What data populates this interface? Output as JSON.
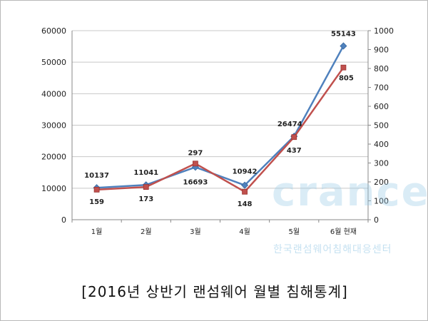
{
  "caption": "[2016년 상반기 랜섬웨어 월별 침해통계]",
  "watermark": {
    "logo_text": "crancert",
    "subtitle": "한국랜섬웨어침해대응센터"
  },
  "chart_data": {
    "type": "line",
    "categories": [
      "1월",
      "2월",
      "3월",
      "4월",
      "5월",
      "6월 현재"
    ],
    "series": [
      {
        "axis": "left",
        "color": "#4F81BD",
        "marker": "diamond",
        "values": [
          10137,
          11041,
          16693,
          10942,
          26474,
          55143
        ]
      },
      {
        "axis": "right",
        "color": "#C0504D",
        "marker": "square",
        "values": [
          159,
          173,
          297,
          148,
          437,
          805
        ]
      }
    ],
    "y_left": {
      "min": 0,
      "max": 60000,
      "ticks": [
        "0",
        "10000",
        "20000",
        "30000",
        "40000",
        "50000",
        "60000"
      ]
    },
    "y_right": {
      "min": 0,
      "max": 1000,
      "ticks": [
        "0",
        "100",
        "200",
        "300",
        "400",
        "500",
        "600",
        "700",
        "800",
        "900",
        "1000"
      ]
    },
    "labels_left": [
      "10137",
      "11041",
      "16693",
      "10942",
      "26474",
      "55143"
    ],
    "labels_right": [
      "159",
      "173",
      "297",
      "148",
      "437",
      "805"
    ],
    "title": "",
    "xlabel": "",
    "ylabel": "",
    "grid": true,
    "legend": "none"
  }
}
